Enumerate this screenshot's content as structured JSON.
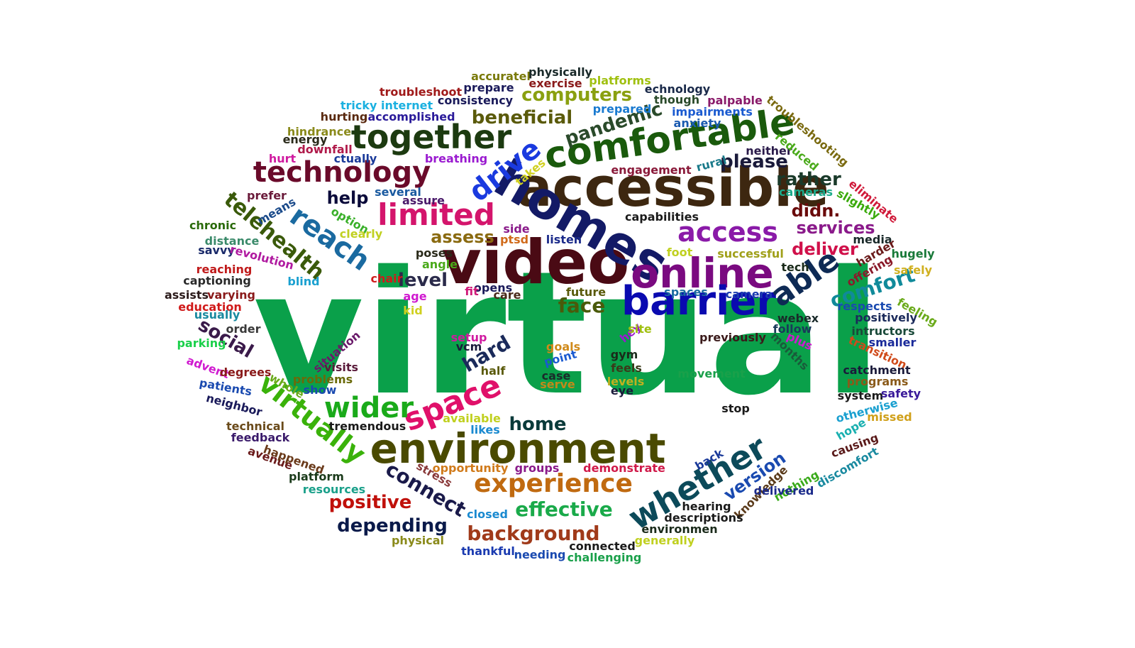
{
  "word_cloud": {
    "words": [
      {
        "text": "virtual",
        "color": "#0aa04a"
      },
      {
        "text": "video",
        "color": "#4a0a14"
      },
      {
        "text": "accessible",
        "color": "#3d2710"
      },
      {
        "text": "homes",
        "color": "#131a66"
      },
      {
        "text": "comfortable",
        "color": "#1a5a0c"
      },
      {
        "text": "online",
        "color": "#7a0a80"
      },
      {
        "text": "barrier",
        "color": "#0a0ab0"
      },
      {
        "text": "environment",
        "color": "#4a4a00"
      },
      {
        "text": "together",
        "color": "#1c3a10"
      },
      {
        "text": "technology",
        "color": "#6a0a2a"
      },
      {
        "text": "limited",
        "color": "#d4156c"
      },
      {
        "text": "access",
        "color": "#8a1aa8"
      },
      {
        "text": "able",
        "color": "#0e2a55"
      },
      {
        "text": "whether",
        "color": "#0c4a5a"
      },
      {
        "text": "experience",
        "color": "#c06a10"
      },
      {
        "text": "space",
        "color": "#e0106a"
      },
      {
        "text": "reach",
        "color": "#1a6aa0"
      },
      {
        "text": "drive",
        "color": "#1a3adf"
      },
      {
        "text": "telehealth",
        "color": "#3a5a0a"
      },
      {
        "text": "virtually",
        "color": "#3ab20a"
      },
      {
        "text": "wider",
        "color": "#1aaa1a"
      },
      {
        "text": "pandemic",
        "color": "#2a4a2a"
      },
      {
        "text": "beneficial",
        "color": "#5a5a0a"
      },
      {
        "text": "computers",
        "color": "#8aa010"
      },
      {
        "text": "please",
        "color": "#1a1a3a"
      },
      {
        "text": "rather",
        "color": "#1a3a2a"
      },
      {
        "text": "didn.",
        "color": "#6a0a0a"
      },
      {
        "text": "services",
        "color": "#8a1a8a"
      },
      {
        "text": "deliver",
        "color": "#d0104a"
      },
      {
        "text": "comfort",
        "color": "#108a9a"
      },
      {
        "text": "help",
        "color": "#0a0a3a"
      },
      {
        "text": "assess",
        "color": "#8a6a10"
      },
      {
        "text": "level",
        "color": "#2a2a4a"
      },
      {
        "text": "face",
        "color": "#4a5a0a"
      },
      {
        "text": "social",
        "color": "#3a1a4a"
      },
      {
        "text": "hard",
        "color": "#1a2a5a"
      },
      {
        "text": "home",
        "color": "#0a3a3a"
      },
      {
        "text": "connect",
        "color": "#1a1a4a"
      },
      {
        "text": "positive",
        "color": "#c0100a"
      },
      {
        "text": "depending",
        "color": "#0a1a4a"
      },
      {
        "text": "effective",
        "color": "#1aaa4a"
      },
      {
        "text": "background",
        "color": "#a03a1a"
      },
      {
        "text": "version",
        "color": "#1a4ab0"
      },
      {
        "text": "troubleshoot",
        "color": "#a01a1a"
      },
      {
        "text": "tricky internet",
        "color": "#1ab0e0"
      },
      {
        "text": "hurting",
        "color": "#5a2a10"
      },
      {
        "text": "accomplished",
        "color": "#2a1a9a"
      },
      {
        "text": "consistency",
        "color": "#1a1a5a"
      },
      {
        "text": "prepare",
        "color": "#1a1a5a"
      },
      {
        "text": "exercise",
        "color": "#8a1a1a"
      },
      {
        "text": "accuratel",
        "color": "#7a7a0a"
      },
      {
        "text": "physically",
        "color": "#1a2a2a"
      },
      {
        "text": "platforms",
        "color": "#a0c010"
      },
      {
        "text": "echnology",
        "color": "#1a2a4a"
      },
      {
        "text": "though",
        "color": "#2a4a2a"
      },
      {
        "text": "palpable",
        "color": "#8a1a6a"
      },
      {
        "text": "impairments",
        "color": "#1a5ad0"
      },
      {
        "text": "prepared",
        "color": "#1a7ad0"
      },
      {
        "text": "anxiety",
        "color": "#1a5ab0"
      },
      {
        "text": "troubleshooting",
        "color": "#7a6a10"
      },
      {
        "text": "neither",
        "color": "#2a1a4a"
      },
      {
        "text": "reduced",
        "color": "#4aaa1a"
      },
      {
        "text": "hindrance",
        "color": "#8a8a1a"
      },
      {
        "text": "energy",
        "color": "#2a2a1a"
      },
      {
        "text": "downfall",
        "color": "#b01a4a"
      },
      {
        "text": "hurt",
        "color": "#d01aa0"
      },
      {
        "text": "ctually",
        "color": "#1a3a9a"
      },
      {
        "text": "breathing",
        "color": "#9a1ad0"
      },
      {
        "text": "takes",
        "color": "#d0d020"
      },
      {
        "text": "engagement",
        "color": "#8a1a3a"
      },
      {
        "text": "rural",
        "color": "#1a7a8a"
      },
      {
        "text": "cameras",
        "color": "#1aaa8a"
      },
      {
        "text": "slightly",
        "color": "#3aaa0a"
      },
      {
        "text": "eliminate",
        "color": "#d01a3a"
      },
      {
        "text": "prefer",
        "color": "#6a1a3a"
      },
      {
        "text": "several",
        "color": "#1a5aa0"
      },
      {
        "text": "assure",
        "color": "#4a1a6a"
      },
      {
        "text": "means",
        "color": "#1a4a8a"
      },
      {
        "text": "option",
        "color": "#3ab02a"
      },
      {
        "text": "clearly",
        "color": "#c0d020"
      },
      {
        "text": "chronic",
        "color": "#2a6a0a"
      },
      {
        "text": "distance",
        "color": "#3a8a6a"
      },
      {
        "text": "savvy",
        "color": "#1a2a6a"
      },
      {
        "text": "revolution",
        "color": "#b01aa0"
      },
      {
        "text": "reaching",
        "color": "#c01a1a"
      },
      {
        "text": "captioning",
        "color": "#2a2a2a"
      },
      {
        "text": "blind",
        "color": "#1aa0d0"
      },
      {
        "text": "assists",
        "color": "#2a1a1a"
      },
      {
        "text": "varying",
        "color": "#8a1a1a"
      },
      {
        "text": "education",
        "color": "#d01a1a"
      },
      {
        "text": "usually",
        "color": "#1a8aa0"
      },
      {
        "text": "order",
        "color": "#3a3a3a"
      },
      {
        "text": "parking",
        "color": "#1ad04a"
      },
      {
        "text": "advent",
        "color": "#d01ad0"
      },
      {
        "text": "degrees",
        "color": "#8a1a1a"
      },
      {
        "text": "whole",
        "color": "#6aaa1a"
      },
      {
        "text": "patients",
        "color": "#1a4ab0"
      },
      {
        "text": "neighbor",
        "color": "#1a1a5a"
      },
      {
        "text": "technical",
        "color": "#6a4a1a"
      },
      {
        "text": "feedback",
        "color": "#3a1a6a"
      },
      {
        "text": "avenue",
        "color": "#6a1a1a"
      },
      {
        "text": "happened",
        "color": "#6a3a1a"
      },
      {
        "text": "platform",
        "color": "#1a3a1a"
      },
      {
        "text": "resources",
        "color": "#1aa08a"
      },
      {
        "text": "capabilities",
        "color": "#1a1a1a"
      },
      {
        "text": "side",
        "color": "#8a1a8a"
      },
      {
        "text": "ptsd",
        "color": "#d06a1a"
      },
      {
        "text": "listen",
        "color": "#1a2a8a"
      },
      {
        "text": "foot",
        "color": "#c0d020"
      },
      {
        "text": "successful",
        "color": "#a0a01a"
      },
      {
        "text": "media",
        "color": "#1a2a2a"
      },
      {
        "text": "hugely",
        "color": "#1a7a3a"
      },
      {
        "text": "poses",
        "color": "#2a2a1a"
      },
      {
        "text": "angle",
        "color": "#4aaa1a"
      },
      {
        "text": "tech",
        "color": "#1a2a1a"
      },
      {
        "text": "harder",
        "color": "#6a1a1a"
      },
      {
        "text": "offering",
        "color": "#8a1a2a"
      },
      {
        "text": "safely",
        "color": "#d0b020"
      },
      {
        "text": "chair",
        "color": "#d01a1a"
      },
      {
        "text": "age",
        "color": "#d01ad0"
      },
      {
        "text": "kid",
        "color": "#d0d020"
      },
      {
        "text": "opens",
        "color": "#1a1a5a"
      },
      {
        "text": "care",
        "color": "#4a2a1a"
      },
      {
        "text": "fit",
        "color": "#d01a7a"
      },
      {
        "text": "future",
        "color": "#5a5a0a"
      },
      {
        "text": "spaces",
        "color": "#1a6aa0"
      },
      {
        "text": "camera",
        "color": "#1a3ab0"
      },
      {
        "text": "respects",
        "color": "#1a4ab0"
      },
      {
        "text": "feeling",
        "color": "#6aaa1a"
      },
      {
        "text": "positively",
        "color": "#1a2a5a"
      },
      {
        "text": "intructors",
        "color": "#1a4a3a"
      },
      {
        "text": "smaller",
        "color": "#1a2a9a"
      },
      {
        "text": "transition",
        "color": "#d04a1a"
      },
      {
        "text": "webex",
        "color": "#1a2a2a"
      },
      {
        "text": "follow",
        "color": "#1a3a5a"
      },
      {
        "text": "plus",
        "color": "#d01ad0"
      },
      {
        "text": "months",
        "color": "#1a5a3a"
      },
      {
        "text": "previously",
        "color": "#3a1a1a"
      },
      {
        "text": "setup",
        "color": "#d01aa0"
      },
      {
        "text": "vcm",
        "color": "#1a1a3a"
      },
      {
        "text": "situation",
        "color": "#6a1a6a"
      },
      {
        "text": "visits",
        "color": "#5a1a3a"
      },
      {
        "text": "problems",
        "color": "#6a6a0a"
      },
      {
        "text": "show",
        "color": "#1a4ab0"
      },
      {
        "text": "goals",
        "color": "#d08a1a"
      },
      {
        "text": "point",
        "color": "#1a5ad0"
      },
      {
        "text": "gym",
        "color": "#1a2a1a"
      },
      {
        "text": "feels",
        "color": "#3a3a1a"
      },
      {
        "text": "levels",
        "color": "#c0b020"
      },
      {
        "text": "eye",
        "color": "#1a1a3a"
      },
      {
        "text": "hey",
        "color": "#9a1ad0"
      },
      {
        "text": "site",
        "color": "#a0c010"
      },
      {
        "text": "half",
        "color": "#5a5a0a"
      },
      {
        "text": "case",
        "color": "#1a2a2a"
      },
      {
        "text": "serve",
        "color": "#c08a1a"
      },
      {
        "text": "movement",
        "color": "#1aa04a"
      },
      {
        "text": "catchment",
        "color": "#1a1a3a"
      },
      {
        "text": "programs",
        "color": "#8a5a1a"
      },
      {
        "text": "system",
        "color": "#1a1a1a"
      },
      {
        "text": "safety",
        "color": "#3a1a9a"
      },
      {
        "text": "otherwise",
        "color": "#1aa0d0"
      },
      {
        "text": "missed",
        "color": "#d0a01a"
      },
      {
        "text": "hope",
        "color": "#1ab0b0"
      },
      {
        "text": "causing",
        "color": "#5a1a1a"
      },
      {
        "text": "discomfort",
        "color": "#1a8aa0"
      },
      {
        "text": "stop",
        "color": "#1a1a1a"
      },
      {
        "text": "tremendous",
        "color": "#1a1a1a"
      },
      {
        "text": "available",
        "color": "#c0d020"
      },
      {
        "text": "likes",
        "color": "#1a8ad0"
      },
      {
        "text": "stress",
        "color": "#8a3a3a"
      },
      {
        "text": "opportunity",
        "color": "#d07a1a"
      },
      {
        "text": "groups",
        "color": "#8a1a8a"
      },
      {
        "text": "demonstrate",
        "color": "#d01a4a"
      },
      {
        "text": "back",
        "color": "#1a3a9a"
      },
      {
        "text": "knowledge",
        "color": "#5a3a1a"
      },
      {
        "text": "nothing",
        "color": "#3aaa1a"
      },
      {
        "text": "delivered",
        "color": "#1a2a8a"
      },
      {
        "text": "closed",
        "color": "#1a8ad0"
      },
      {
        "text": "hearing",
        "color": "#1a1a1a"
      },
      {
        "text": "descriptions",
        "color": "#1a1a1a"
      },
      {
        "text": "environmen",
        "color": "#1a2a1a"
      },
      {
        "text": "physical",
        "color": "#8a8a1a"
      },
      {
        "text": "thankful",
        "color": "#1a3ab0"
      },
      {
        "text": "needing",
        "color": "#1a4ab0"
      },
      {
        "text": "connected",
        "color": "#1a1a1a"
      },
      {
        "text": "generally",
        "color": "#c0d020"
      },
      {
        "text": "challenging",
        "color": "#1aa04a"
      }
    ]
  }
}
